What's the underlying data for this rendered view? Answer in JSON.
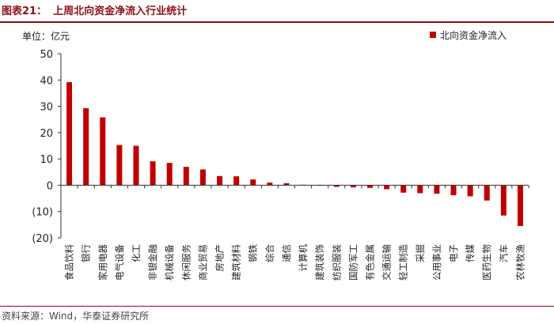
{
  "header": {
    "figure_label": "图表21：",
    "title": "上周北向资金净流入行业统计"
  },
  "footer": {
    "source": "资料来源：Wind，华泰证券研究所"
  },
  "chart_data": {
    "type": "bar",
    "title": "上周北向资金净流入行业统计",
    "unit_label": "单位：亿元",
    "legend_position": "top-right",
    "grid": false,
    "ylim": [
      -20,
      50
    ],
    "yticks": [
      50,
      40,
      30,
      20,
      10,
      0,
      -10,
      -20
    ],
    "ytick_labels": [
      "50",
      "40",
      "30",
      "20",
      "10",
      "0",
      "(10)",
      "(20)"
    ],
    "bar_color": "#c00000",
    "categories": [
      "食品饮料",
      "银行",
      "家用电器",
      "电气设备",
      "化工",
      "非银金融",
      "机械设备",
      "休闲服务",
      "商业贸易",
      "房地产",
      "建筑材料",
      "钢铁",
      "综合",
      "通信",
      "计算机",
      "建筑装饰",
      "纺织服装",
      "国防军工",
      "有色金属",
      "交通运输",
      "轻工制造",
      "采掘",
      "公用事业",
      "电子",
      "传媒",
      "医药生物",
      "汽车",
      "农林牧渔"
    ],
    "series": [
      {
        "name": "北向资金净流入",
        "values": [
          39.2,
          29.3,
          25.8,
          15.3,
          15.0,
          9.1,
          8.5,
          7.0,
          6.0,
          3.5,
          3.4,
          2.2,
          1.0,
          0.8,
          0.2,
          -0.2,
          -0.6,
          -0.8,
          -1.0,
          -1.5,
          -2.8,
          -3.0,
          -3.2,
          -3.8,
          -4.2,
          -5.8,
          -11.5,
          -15.5
        ]
      }
    ]
  }
}
